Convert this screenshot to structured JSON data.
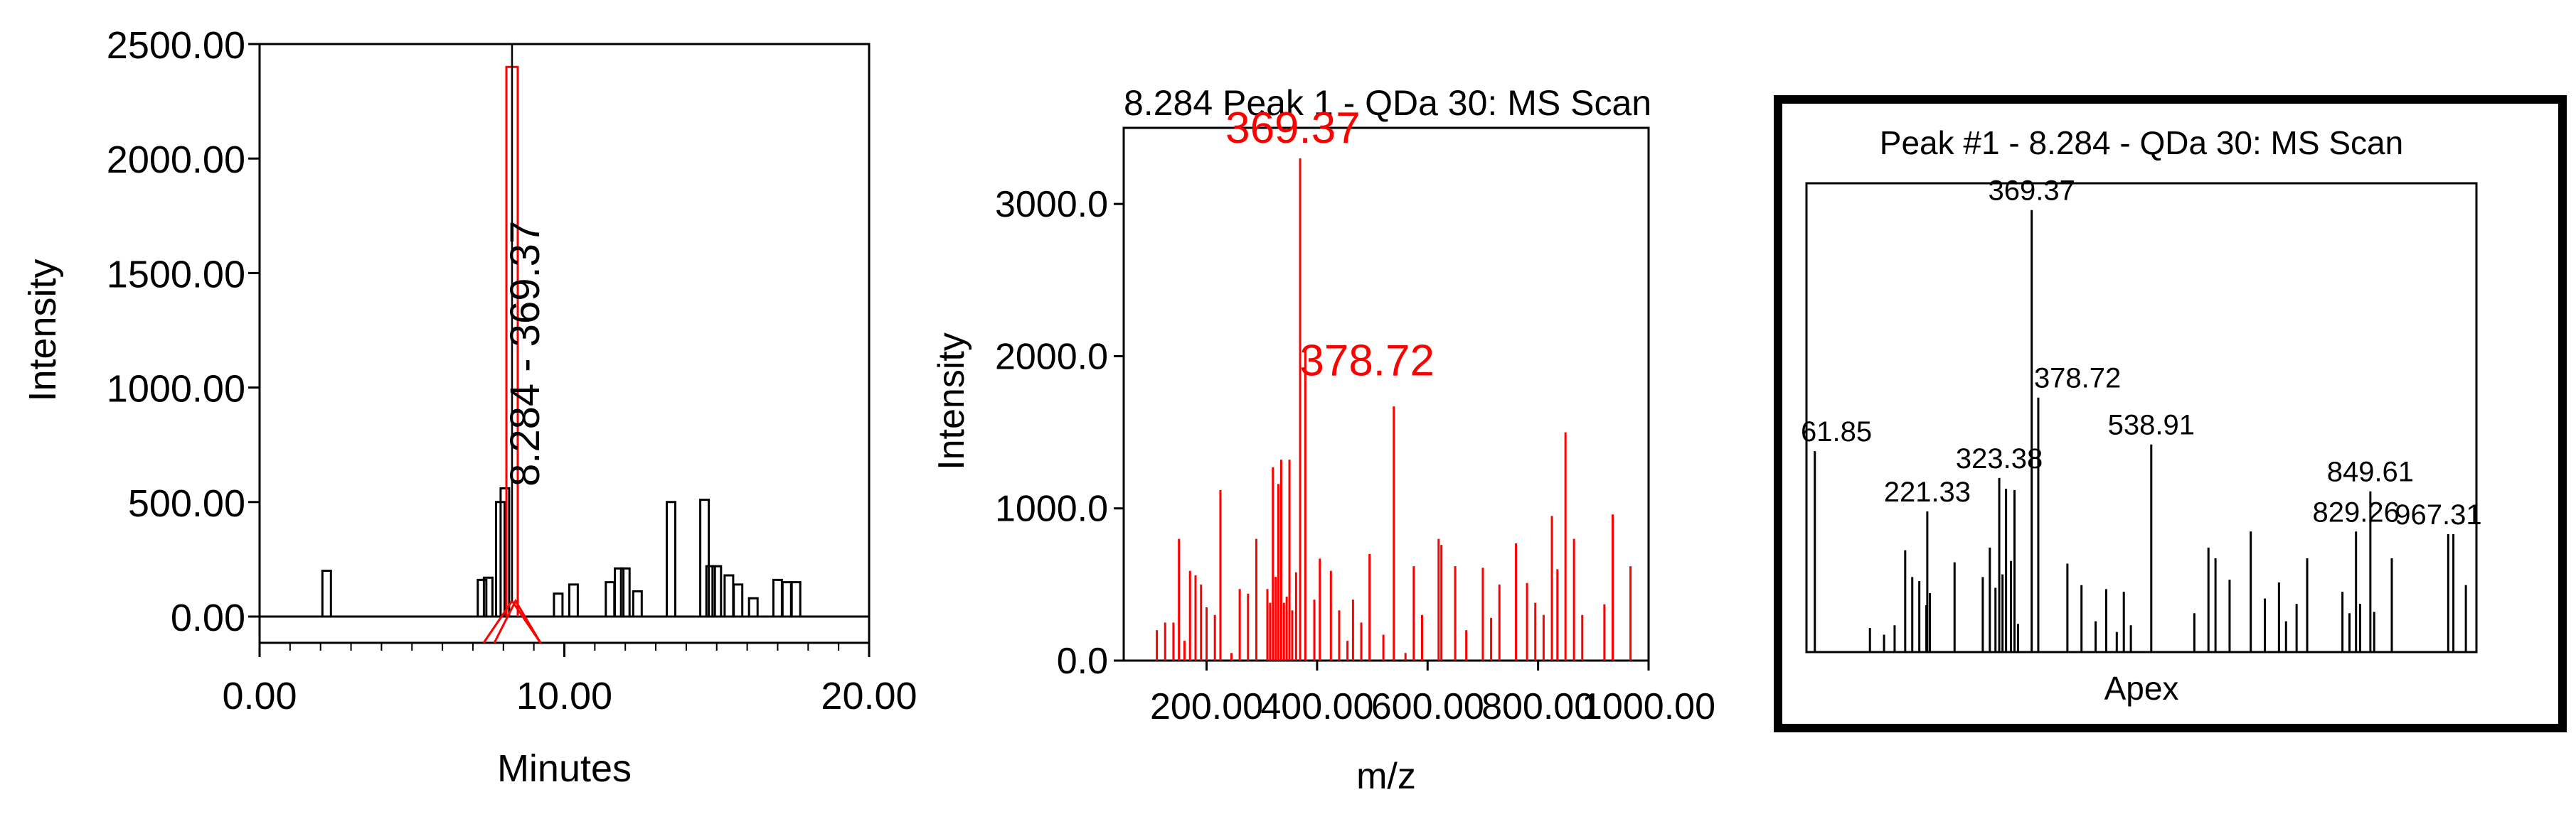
{
  "colors": {
    "black": "#000000",
    "red": "#ff0000",
    "background": "#ffffff"
  },
  "chart_data": [
    {
      "type": "line",
      "xlabel": "Minutes",
      "ylabel": "Intensity",
      "xlim": [
        0,
        20
      ],
      "ylim": [
        0,
        2500
      ],
      "x_ticks": [
        "0.00",
        "10.00",
        "20.00"
      ],
      "y_ticks": [
        "0.00",
        "500.00",
        "1000.00",
        "1500.00",
        "2000.00",
        "2500.00"
      ],
      "peak_annotation": "8.284 - 369.37",
      "peak_rt": 8.284,
      "peak_height": 2400,
      "series": [
        {
          "points": [
            [
              2.2,
              200
            ],
            [
              7.3,
              160
            ],
            [
              7.5,
              170
            ],
            [
              7.9,
              500
            ],
            [
              8.05,
              560
            ],
            [
              9.8,
              100
            ],
            [
              10.3,
              140
            ],
            [
              11.5,
              150
            ],
            [
              11.8,
              210
            ],
            [
              12.0,
              210
            ],
            [
              12.4,
              110
            ],
            [
              13.5,
              500
            ],
            [
              14.6,
              510
            ],
            [
              14.8,
              220
            ],
            [
              15.0,
              220
            ],
            [
              15.4,
              180
            ],
            [
              15.7,
              140
            ],
            [
              16.2,
              80
            ],
            [
              17.0,
              160
            ],
            [
              17.3,
              150
            ],
            [
              17.6,
              150
            ]
          ]
        }
      ]
    },
    {
      "type": "bar",
      "title": "8.284 Peak 1 - QDa 30: MS Scan",
      "xlabel": "m/z",
      "ylabel": "Intensity",
      "xlim": [
        50,
        1000
      ],
      "ylim": [
        0,
        3500
      ],
      "x_ticks": [
        "200.00",
        "400.00",
        "600.00",
        "800.00",
        "1000.00"
      ],
      "y_ticks": [
        "0.0",
        "1000.0",
        "2000.0",
        "3000.0"
      ],
      "annotations": [
        {
          "label": "369.37",
          "x": 369.37,
          "y": 3300
        },
        {
          "label": "378.72",
          "x": 378.72,
          "y": 2050
        }
      ],
      "series": [
        {
          "points": [
            [
              110,
              200
            ],
            [
              125,
              250
            ],
            [
              140,
              250
            ],
            [
              150,
              800
            ],
            [
              160,
              130
            ],
            [
              170,
              590
            ],
            [
              180,
              560
            ],
            [
              190,
              500
            ],
            [
              200,
              350
            ],
            [
              215,
              300
            ],
            [
              225,
              1120
            ],
            [
              245,
              50
            ],
            [
              260,
              470
            ],
            [
              275,
              440
            ],
            [
              290,
              800
            ],
            [
              310,
              470
            ],
            [
              315,
              380
            ],
            [
              320,
              1270
            ],
            [
              325,
              550
            ],
            [
              330,
              1160
            ],
            [
              335,
              1320
            ],
            [
              340,
              380
            ],
            [
              345,
              420
            ],
            [
              350,
              1320
            ],
            [
              355,
              330
            ],
            [
              362,
              580
            ],
            [
              369.37,
              3300
            ],
            [
              378.72,
              2050
            ],
            [
              395,
              400
            ],
            [
              405,
              670
            ],
            [
              425,
              590
            ],
            [
              440,
              330
            ],
            [
              455,
              130
            ],
            [
              465,
              400
            ],
            [
              480,
              250
            ],
            [
              495,
              700
            ],
            [
              520,
              170
            ],
            [
              538.91,
              1670
            ],
            [
              560,
              50
            ],
            [
              575,
              620
            ],
            [
              590,
              300
            ],
            [
              620,
              800
            ],
            [
              625,
              760
            ],
            [
              650,
              620
            ],
            [
              670,
              200
            ],
            [
              700,
              610
            ],
            [
              715,
              280
            ],
            [
              730,
              500
            ],
            [
              760,
              770
            ],
            [
              780,
              510
            ],
            [
              795,
              380
            ],
            [
              810,
              300
            ],
            [
              825,
              950
            ],
            [
              835,
              600
            ],
            [
              849.61,
              1500
            ],
            [
              865,
              800
            ],
            [
              880,
              300
            ],
            [
              920,
              370
            ],
            [
              935,
              960
            ],
            [
              967.31,
              620
            ]
          ]
        }
      ]
    },
    {
      "type": "bar",
      "title": "Peak #1 - 8.284 - QDa 30: MS Scan",
      "xlabel": "Apex",
      "xlim": [
        50,
        1000
      ],
      "ylim": [
        0,
        3500
      ],
      "annotations": [
        {
          "label": "61.85",
          "x": 61.85,
          "y": 1500
        },
        {
          "label": "221.33",
          "x": 221.33,
          "y": 1050
        },
        {
          "label": "323.38",
          "x": 323.38,
          "y": 1300
        },
        {
          "label": "369.37",
          "x": 369.37,
          "y": 3300
        },
        {
          "label": "378.72",
          "x": 378.72,
          "y": 1900
        },
        {
          "label": "538.91",
          "x": 538.91,
          "y": 1550
        },
        {
          "label": "829.26",
          "x": 829.26,
          "y": 900
        },
        {
          "label": "849.61",
          "x": 849.61,
          "y": 1200
        },
        {
          "label": "967.31",
          "x": 967.31,
          "y": 880
        }
      ],
      "series": [
        {
          "points": [
            [
              61.85,
              1500
            ],
            [
              140,
              180
            ],
            [
              160,
              130
            ],
            [
              175,
              200
            ],
            [
              190,
              760
            ],
            [
              200,
              560
            ],
            [
              210,
              530
            ],
            [
              220,
              350
            ],
            [
              225,
              440
            ],
            [
              221.33,
              1050
            ],
            [
              260,
              670
            ],
            [
              300,
              560
            ],
            [
              310,
              780
            ],
            [
              318,
              480
            ],
            [
              323.38,
              1300
            ],
            [
              328,
              580
            ],
            [
              333,
              1220
            ],
            [
              340,
              680
            ],
            [
              345,
              1210
            ],
            [
              350,
              210
            ],
            [
              369.37,
              3300
            ],
            [
              378.72,
              1900
            ],
            [
              420,
              660
            ],
            [
              440,
              500
            ],
            [
              460,
              230
            ],
            [
              475,
              470
            ],
            [
              490,
              150
            ],
            [
              500,
              450
            ],
            [
              510,
              200
            ],
            [
              538.91,
              1550
            ],
            [
              600,
              290
            ],
            [
              620,
              780
            ],
            [
              630,
              700
            ],
            [
              650,
              540
            ],
            [
              680,
              900
            ],
            [
              700,
              400
            ],
            [
              720,
              520
            ],
            [
              730,
              230
            ],
            [
              745,
              360
            ],
            [
              760,
              700
            ],
            [
              810,
              450
            ],
            [
              820,
              290
            ],
            [
              829.26,
              900
            ],
            [
              835,
              360
            ],
            [
              849.61,
              1200
            ],
            [
              855,
              300
            ],
            [
              880,
              700
            ],
            [
              960,
              880
            ],
            [
              967.31,
              880
            ],
            [
              985,
              500
            ]
          ]
        }
      ]
    }
  ]
}
